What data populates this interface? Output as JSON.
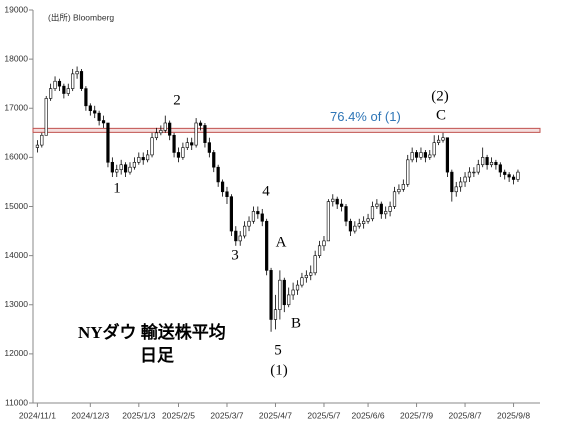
{
  "chart_data": {
    "type": "ohlc",
    "source": "(出所) Bloomberg",
    "title": "NYダウ 輸送株平均",
    "subtitle": "日足",
    "annotations": [
      "1",
      "2",
      "3",
      "4",
      "5",
      "(1)",
      "A",
      "B",
      "C",
      "(2)"
    ],
    "hline": {
      "value": 16550,
      "label": "76.4% of (1)",
      "color": "#c0504d",
      "label_color": "#2e75b6"
    },
    "open": [
      16200,
      16250,
      16450,
      17200,
      17400,
      17550,
      17450,
      17300,
      17400,
      17700,
      17750,
      17400,
      17050,
      16950,
      16900,
      16750,
      16700,
      15900,
      15700,
      15750,
      15850,
      15700,
      15800,
      15900,
      16000,
      15950,
      16050,
      16400,
      16500,
      16550,
      16700,
      16450,
      16100,
      16000,
      16200,
      16300,
      16250,
      16700,
      16650,
      16300,
      16100,
      15800,
      15500,
      15300,
      15200,
      14500,
      14300,
      14400,
      14600,
      14700,
      14900,
      14850,
      14700,
      13700,
      12700,
      12900,
      13500,
      13000,
      13200,
      13300,
      13400,
      13550,
      13600,
      13650,
      14000,
      14200,
      14300,
      15100,
      15150,
      15050,
      15000,
      14700,
      14500,
      14600,
      14650,
      14700,
      14750,
      15000,
      15050,
      14850,
      14900,
      15000,
      15300,
      15350,
      15450,
      15950,
      16100,
      16000,
      16100,
      16000,
      16050,
      16300,
      16350,
      16400,
      15700,
      15300,
      15400,
      15500,
      15600,
      15700,
      15700,
      15850,
      16000,
      15850,
      15900,
      15850,
      15700,
      15650,
      15600,
      15550
    ],
    "high": [
      16350,
      16500,
      17250,
      17500,
      17650,
      17600,
      17500,
      17500,
      17800,
      17850,
      17800,
      17450,
      17100,
      17050,
      16950,
      16850,
      16700,
      16000,
      15850,
      15950,
      15900,
      15900,
      16000,
      16100,
      16100,
      16150,
      16500,
      16600,
      16650,
      16850,
      16750,
      16500,
      16200,
      16300,
      16400,
      16400,
      16800,
      16750,
      16700,
      16400,
      16150,
      15850,
      15550,
      15400,
      15250,
      14600,
      14500,
      14700,
      14800,
      15000,
      15000,
      14950,
      14750,
      13750,
      13200,
      13700,
      13550,
      13350,
      13450,
      13500,
      13650,
      13700,
      13800,
      14100,
      14300,
      14400,
      15150,
      15250,
      15200,
      15150,
      15050,
      14750,
      14700,
      14750,
      14800,
      14850,
      15100,
      15150,
      15100,
      15000,
      15100,
      15400,
      15450,
      15550,
      16050,
      16200,
      16150,
      16200,
      16150,
      16150,
      16450,
      16450,
      16500,
      16400,
      15750,
      15500,
      15600,
      15700,
      15800,
      15800,
      15950,
      16200,
      16050,
      16000,
      15950,
      15900,
      15750,
      15700,
      15650,
      15750
    ],
    "low": [
      16100,
      16200,
      16450,
      17150,
      17350,
      17350,
      17200,
      17250,
      17350,
      17600,
      17350,
      16950,
      16850,
      16800,
      16650,
      16600,
      15800,
      15600,
      15600,
      15650,
      15600,
      15650,
      15750,
      15850,
      15850,
      15900,
      16000,
      16350,
      16450,
      16500,
      16350,
      16000,
      15900,
      15950,
      16150,
      16150,
      16200,
      16550,
      16200,
      16000,
      15700,
      15400,
      15200,
      15050,
      14400,
      14200,
      14200,
      14350,
      14500,
      14650,
      14750,
      14600,
      13600,
      12450,
      12500,
      12700,
      12850,
      12950,
      13100,
      13200,
      13350,
      13450,
      13500,
      13600,
      13950,
      14100,
      14300,
      15000,
      14950,
      14900,
      14600,
      14400,
      14450,
      14550,
      14550,
      14650,
      14700,
      14950,
      14750,
      14750,
      14800,
      14950,
      15250,
      15300,
      15400,
      15900,
      15900,
      15950,
      15900,
      15950,
      16000,
      16250,
      16300,
      15600,
      15100,
      15200,
      15300,
      15400,
      15500,
      15600,
      15650,
      15800,
      15750,
      15800,
      15750,
      15600,
      15550,
      15500,
      15450,
      15500
    ],
    "close": [
      16250,
      16450,
      17200,
      17400,
      17550,
      17450,
      17300,
      17400,
      17700,
      17750,
      17400,
      17050,
      16950,
      16900,
      16750,
      16700,
      15900,
      15700,
      15750,
      15850,
      15700,
      15800,
      15900,
      16000,
      15950,
      16050,
      16400,
      16500,
      16550,
      16700,
      16450,
      16100,
      16000,
      16200,
      16300,
      16250,
      16700,
      16650,
      16300,
      16100,
      15800,
      15500,
      15300,
      15200,
      14500,
      14300,
      14400,
      14600,
      14700,
      14900,
      14850,
      14700,
      13700,
      12700,
      12900,
      13500,
      13000,
      13200,
      13300,
      13400,
      13550,
      13600,
      13650,
      14000,
      14200,
      14300,
      15100,
      15150,
      15050,
      15000,
      14700,
      14500,
      14600,
      14650,
      14700,
      14750,
      15000,
      15050,
      14850,
      14900,
      15000,
      15300,
      15350,
      15450,
      15950,
      16100,
      16000,
      16100,
      16000,
      16050,
      16300,
      16350,
      16400,
      15700,
      15300,
      15400,
      15500,
      15600,
      15700,
      15700,
      15850,
      16000,
      15850,
      15900,
      15850,
      15700,
      15650,
      15600,
      15550,
      15700
    ],
    "xlim": [
      -1,
      114
    ],
    "xticks": [
      {
        "value": 0,
        "label": "2024/11/1"
      },
      {
        "value": 12,
        "label": "2024/12/3"
      },
      {
        "value": 23,
        "label": "2025/1/3"
      },
      {
        "value": 32,
        "label": "2025/2/5"
      },
      {
        "value": 43,
        "label": "2025/3/7"
      },
      {
        "value": 54,
        "label": "2025/4/7"
      },
      {
        "value": 65,
        "label": "2025/5/7"
      },
      {
        "value": 75,
        "label": "2025/6/6"
      },
      {
        "value": 86,
        "label": "2025/7/9"
      },
      {
        "value": 97,
        "label": "2025/8/7"
      },
      {
        "value": 108,
        "label": "2025/9/8"
      }
    ],
    "ylim": [
      11000,
      19000
    ],
    "yticks": [
      11000,
      12000,
      13000,
      14000,
      15000,
      16000,
      17000,
      18000,
      19000
    ]
  }
}
